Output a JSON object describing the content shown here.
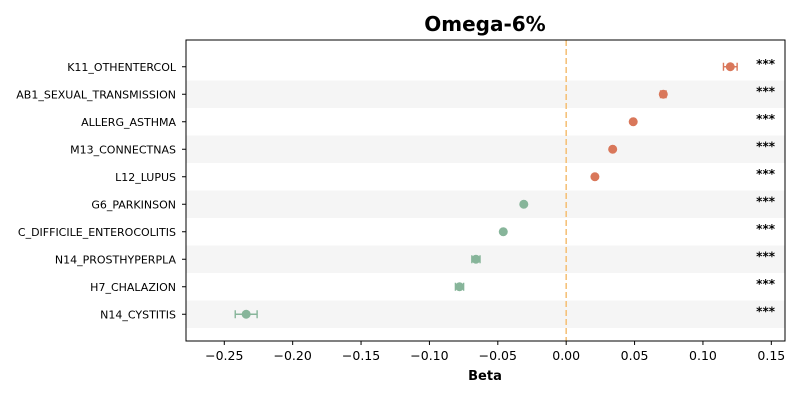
{
  "chart_data": {
    "type": "scatter",
    "title": "Omega-6%",
    "xlabel": "Beta",
    "ylabel": "",
    "xlim": [
      -0.278,
      0.16
    ],
    "xticks": [
      -0.25,
      -0.2,
      -0.15,
      -0.1,
      -0.05,
      0.0,
      0.05,
      0.1,
      0.15
    ],
    "xtick_labels": [
      "−0.25",
      "−0.20",
      "−0.15",
      "−0.10",
      "−0.05",
      "0.00",
      "0.05",
      "0.10",
      "0.15"
    ],
    "reference_line_x": 0,
    "grid": false,
    "row_shading": "alternating",
    "colors": {
      "positive": "#d9775a",
      "negative": "#87b59a",
      "reference_line": "#f5c27a",
      "row_band": "#f5f5f5"
    },
    "rows": [
      {
        "label": "K11_OTHENTERCOL",
        "beta": 0.12,
        "ci": [
          0.115,
          0.125
        ],
        "sig": "***"
      },
      {
        "label": "AB1_SEXUAL_TRANSMISSION",
        "beta": 0.071,
        "ci": [
          0.069,
          0.073
        ],
        "sig": "***"
      },
      {
        "label": "ALLERG_ASTHMA",
        "beta": 0.049,
        "ci": [
          0.048,
          0.05
        ],
        "sig": "***"
      },
      {
        "label": "M13_CONNECTNAS",
        "beta": 0.034,
        "ci": [
          0.033,
          0.035
        ],
        "sig": "***"
      },
      {
        "label": "L12_LUPUS",
        "beta": 0.021,
        "ci": [
          0.02,
          0.022
        ],
        "sig": "***"
      },
      {
        "label": "G6_PARKINSON",
        "beta": -0.031,
        "ci": [
          -0.032,
          -0.03
        ],
        "sig": "***"
      },
      {
        "label": "C_DIFFICILE_ENTEROCOLITIS",
        "beta": -0.046,
        "ci": [
          -0.047,
          -0.045
        ],
        "sig": "***"
      },
      {
        "label": "N14_PROSTHYPERPLA",
        "beta": -0.066,
        "ci": [
          -0.069,
          -0.063
        ],
        "sig": "***"
      },
      {
        "label": "H7_CHALAZION",
        "beta": -0.078,
        "ci": [
          -0.081,
          -0.075
        ],
        "sig": "***"
      },
      {
        "label": "N14_CYSTITIS",
        "beta": -0.234,
        "ci": [
          -0.242,
          -0.226
        ],
        "sig": "***"
      }
    ]
  }
}
